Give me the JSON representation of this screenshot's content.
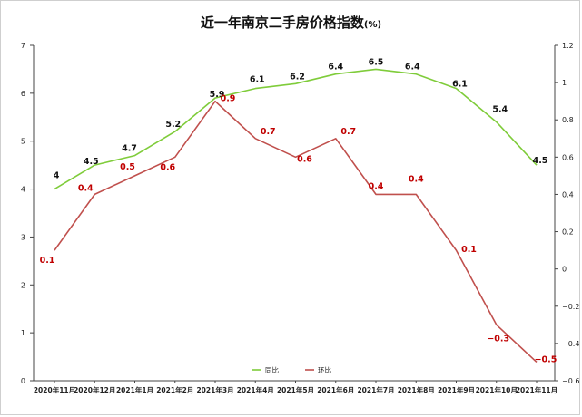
{
  "title": {
    "main": "近一年南京二手房价格指数",
    "unit": "(%)"
  },
  "colors": {
    "yoy": "#7fcc3a",
    "mom": "#c0504d",
    "yoy_label": "#111111",
    "mom_label": "#c00000"
  },
  "chart_data": {
    "type": "line",
    "categories": [
      "2020年11月",
      "2020年12月",
      "2021年1月",
      "2021年2月",
      "2021年3月",
      "2021年4月",
      "2021年5月",
      "2021年6月",
      "2021年7月",
      "2021年8月",
      "2021年9月",
      "2021年10月",
      "2021年11月"
    ],
    "series": [
      {
        "name": "同比",
        "axis": "left",
        "color": "#7fcc3a",
        "values": [
          4,
          4.5,
          4.7,
          5.2,
          5.9,
          6.1,
          6.2,
          6.4,
          6.5,
          6.4,
          6.1,
          5.4,
          4.5
        ]
      },
      {
        "name": "环比",
        "axis": "right",
        "color": "#c0504d",
        "values": [
          0.1,
          0.4,
          0.5,
          0.6,
          0.9,
          0.7,
          0.6,
          0.7,
          0.4,
          0.4,
          0.1,
          -0.3,
          -0.5
        ]
      }
    ],
    "y_left": {
      "min": 0,
      "max": 7,
      "ticks": [
        "0",
        "1",
        "2",
        "3",
        "4",
        "5",
        "6",
        "7"
      ]
    },
    "y_right": {
      "min": -0.6,
      "max": 1.2,
      "ticks": [
        "−0.6",
        "−0.4",
        "−0.2",
        "0",
        "0.2",
        "0.4",
        "0.6",
        "0.8",
        "1",
        "1.2"
      ]
    },
    "grid": false,
    "legend_position": "bottom-center"
  }
}
